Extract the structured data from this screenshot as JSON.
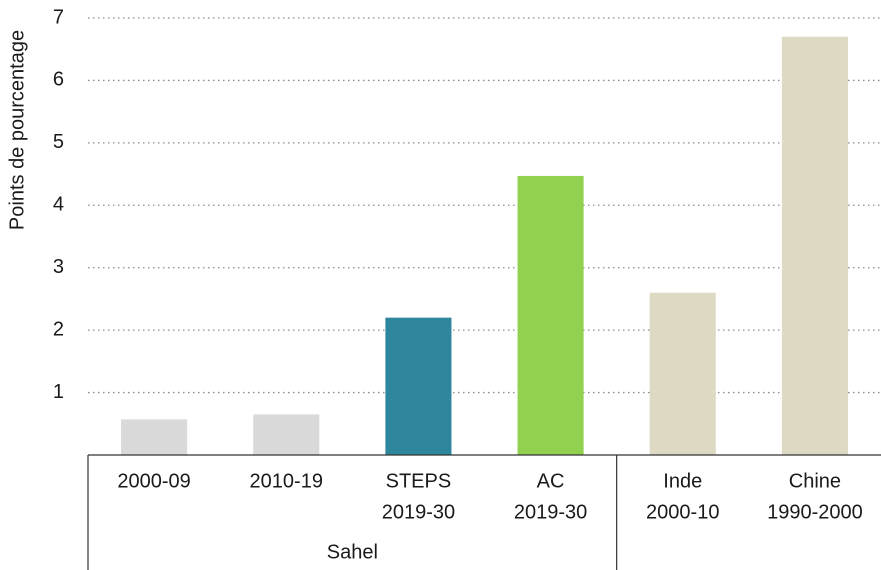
{
  "chart_data": {
    "type": "bar",
    "y_label": "Points de pourcentage",
    "categories": [
      [
        "2000-09"
      ],
      [
        "2010-19"
      ],
      [
        "STEPS",
        "2019-30"
      ],
      [
        "AC",
        "2019-30"
      ],
      [
        "Inde",
        "2000-10"
      ],
      [
        "Chine",
        "1990-2000"
      ]
    ],
    "category_groups": [
      "Sahel",
      "Sahel",
      "Sahel",
      "Sahel",
      null,
      null
    ],
    "values": [
      0.57,
      0.65,
      2.2,
      4.47,
      2.6,
      6.7
    ],
    "colors": [
      "#d9d9d9",
      "#d9d9d9",
      "#2e869c",
      "#92d050",
      "#ddd9c3",
      "#ddd9c3"
    ],
    "ylim": [
      0,
      7
    ],
    "yticks": [
      1,
      2,
      3,
      4,
      5,
      6,
      7
    ],
    "grid": true
  }
}
